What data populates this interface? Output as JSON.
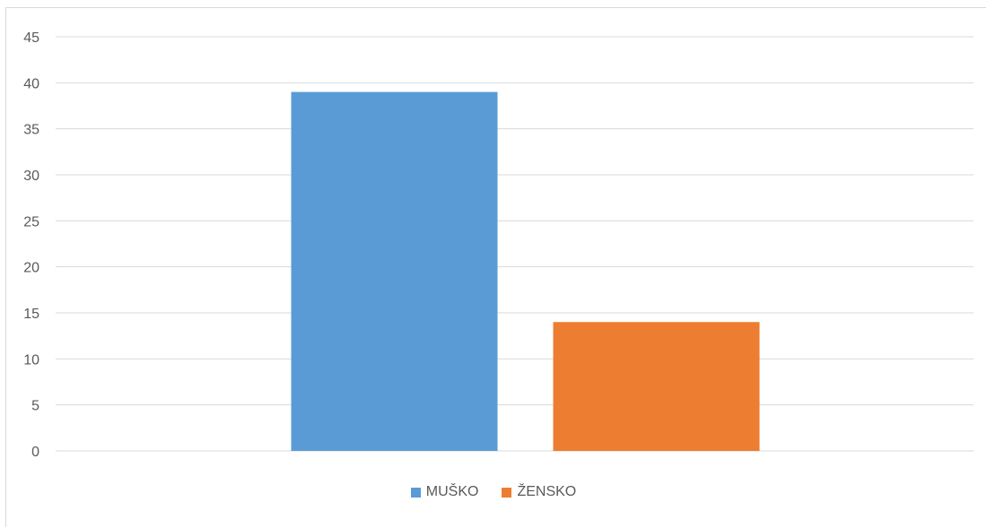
{
  "chart_data": {
    "type": "bar",
    "categories": [
      ""
    ],
    "series": [
      {
        "name": "MUŠKO",
        "values": [
          39
        ],
        "color": "#5b9bd5"
      },
      {
        "name": "ŽENSKO",
        "values": [
          14
        ],
        "color": "#ed7d31"
      }
    ],
    "ylim": [
      0,
      45
    ],
    "yticks": [
      0,
      5,
      10,
      15,
      20,
      25,
      30,
      35,
      40,
      45
    ],
    "grid": true,
    "legend_position": "bottom",
    "gridline_color": "#d9d9d9"
  }
}
